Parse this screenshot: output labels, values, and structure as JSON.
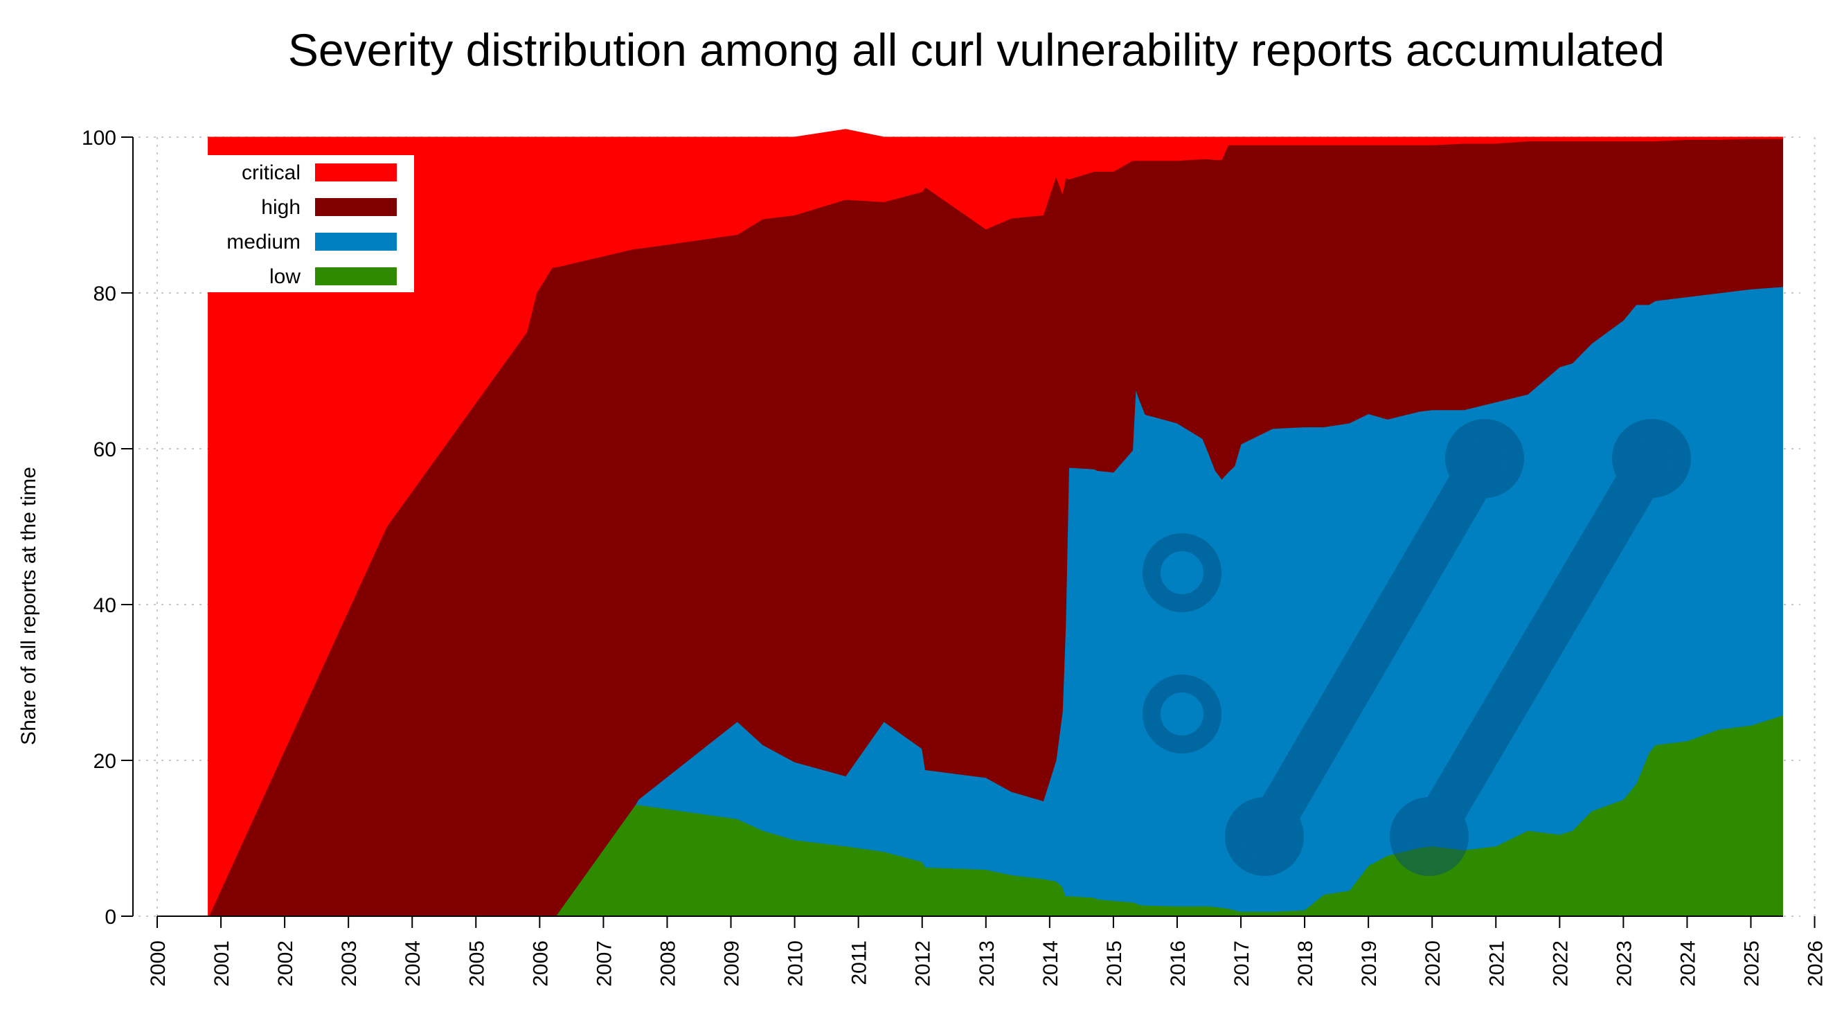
{
  "chart_data": {
    "type": "area",
    "stacked": true,
    "percent": true,
    "title": "Severity distribution among all curl vulnerability reports accumulated",
    "xlabel": "",
    "ylabel": "Share of all reports at the time",
    "xlim": [
      2000,
      2026
    ],
    "ylim": [
      0,
      100
    ],
    "x_ticks": [
      "2000",
      "2001",
      "2002",
      "2003",
      "2004",
      "2005",
      "2006",
      "2007",
      "2008",
      "2009",
      "2010",
      "2011",
      "2012",
      "2013",
      "2014",
      "2015",
      "2016",
      "2017",
      "2018",
      "2019",
      "2020",
      "2021",
      "2022",
      "2023",
      "2024",
      "2025",
      "2026"
    ],
    "y_ticks": [
      "0",
      "20",
      "40",
      "60",
      "80",
      "100"
    ],
    "grid": true,
    "legend_position": "top-left",
    "x": [
      2000.8,
      2000.81,
      2003.6,
      2005.8,
      2005.95,
      2006.2,
      2006.25,
      2007.5,
      2007.55,
      2009.1,
      2009.5,
      2010.0,
      2010.8,
      2011.4,
      2012.0,
      2012.05,
      2013.0,
      2013.4,
      2013.9,
      2014.1,
      2014.2,
      2014.25,
      2014.3,
      2014.7,
      2014.75,
      2015.0,
      2015.3,
      2015.35,
      2015.4,
      2015.5,
      2016.0,
      2016.4,
      2016.5,
      2016.6,
      2016.7,
      2016.8,
      2016.9,
      2017.0,
      2017.5,
      2018.0,
      2018.3,
      2018.7,
      2019.0,
      2019.3,
      2019.8,
      2020.0,
      2020.5,
      2021.0,
      2021.5,
      2022.0,
      2022.2,
      2022.5,
      2023.0,
      2023.2,
      2023.4,
      2023.5,
      2024.0,
      2024.5,
      2025.0,
      2025.5
    ],
    "series": [
      {
        "name": "low",
        "values": [
          0,
          0,
          0,
          0,
          0,
          0,
          0,
          14.3,
          14.3,
          12.5,
          11,
          9.8,
          9,
          8.3,
          7,
          6.3,
          6,
          5.3,
          4.8,
          4.5,
          3.8,
          2.6,
          2.6,
          2.4,
          2.2,
          2,
          1.8,
          1.7,
          1.5,
          1.4,
          1.3,
          1.3,
          1.3,
          1.2,
          1.1,
          1,
          0.8,
          0.6,
          0.6,
          0.8,
          2.8,
          3.3,
          6.5,
          7.8,
          8.8,
          9,
          8.5,
          9,
          11,
          10.5,
          11,
          13.5,
          15,
          17,
          21,
          22,
          22.5,
          24,
          24.5,
          25.8
        ]
      },
      {
        "name": "medium",
        "values": [
          0,
          0,
          0,
          0,
          0,
          0,
          0,
          0,
          0.7,
          12.5,
          11,
          10,
          9,
          16.7,
          14.5,
          12.5,
          11.8,
          10.7,
          10,
          15.5,
          22.5,
          35,
          55,
          55,
          55,
          55,
          58,
          66,
          65,
          63,
          62,
          60,
          58,
          56,
          55,
          56,
          57,
          60,
          62,
          62,
          60,
          60,
          58,
          56,
          56,
          56,
          56.5,
          57,
          56,
          60,
          60,
          60,
          61.5,
          61.5,
          57.5,
          57,
          57,
          56,
          56,
          55
        ]
      },
      {
        "name": "high",
        "values": [
          0,
          0,
          50,
          75,
          80,
          83.3,
          83.3,
          71.4,
          70.7,
          62.5,
          67.5,
          70.2,
          74,
          66.7,
          71.5,
          74.8,
          70.4,
          73.6,
          75.2,
          75,
          66.5,
          57.2,
          37,
          38.2,
          38.4,
          38.6,
          37.2,
          29.3,
          30.5,
          32.6,
          33.7,
          35.9,
          37.9,
          39.9,
          41,
          42,
          41.2,
          38.4,
          36.4,
          36.2,
          36.2,
          35.7,
          34.5,
          35.2,
          34.2,
          34,
          34.2,
          33.2,
          32.5,
          29,
          28.5,
          26,
          23,
          21,
          21,
          20.5,
          20.2,
          19.7,
          19.3,
          19
        ]
      },
      {
        "name": "critical",
        "values": [
          100,
          100,
          50,
          25,
          20,
          16.7,
          16.7,
          14.3,
          14.3,
          12.5,
          10.5,
          10,
          9,
          8.3,
          7,
          6.4,
          11.8,
          10.4,
          10,
          5,
          7.2,
          5.2,
          5.4,
          4.4,
          4.4,
          4.4,
          3,
          3,
          3,
          3,
          3,
          2.8,
          2.8,
          2.9,
          2.9,
          1,
          1,
          1,
          1,
          1,
          1,
          1,
          1,
          1,
          1,
          1,
          0.8,
          0.8,
          0.5,
          0.5,
          0.5,
          0.5,
          0.5,
          0.5,
          0.5,
          0.5,
          0.3,
          0.3,
          0.2,
          0.2
        ]
      }
    ],
    "colors": {
      "critical": "#ff0000",
      "high": "#800000",
      "medium": "#0080c0",
      "low": "#2e8b00"
    },
    "legend_order": [
      "critical",
      "high",
      "medium",
      "low"
    ]
  },
  "watermark": {
    "description": "curl logo (faint)",
    "color": "#004a7a"
  }
}
